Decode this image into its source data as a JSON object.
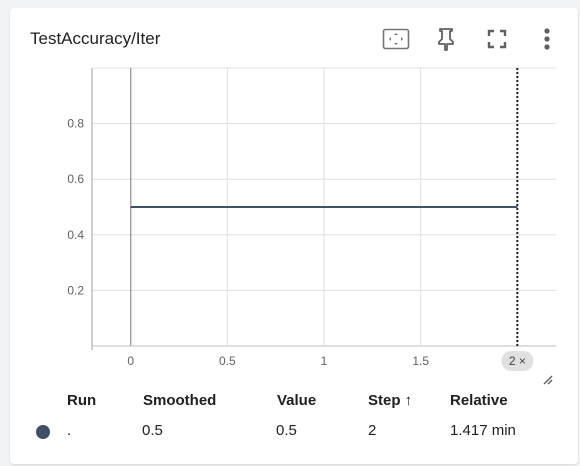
{
  "card": {
    "title": "TestAccuracy/Iter"
  },
  "toolbar": {
    "fit_icon": "fit-domain-icon",
    "pin_icon": "pin-icon",
    "fullscreen_icon": "fullscreen-icon",
    "menu_icon": "more-vert-icon"
  },
  "chart_data": {
    "type": "line",
    "title": "TestAccuracy/Iter",
    "xlabel": "",
    "ylabel": "",
    "xlim": [
      -0.2,
      2.2
    ],
    "ylim": [
      0,
      1
    ],
    "x_ticks": [
      0,
      0.5,
      1,
      1.5
    ],
    "x_tick_labels": [
      "0",
      "0.5",
      "1",
      "1.5"
    ],
    "y_ticks": [
      0.2,
      0.4,
      0.6,
      0.8
    ],
    "y_tick_labels": [
      "0.2",
      "0.4",
      "0.6",
      "0.8"
    ],
    "grid": true,
    "series": [
      {
        "x": [
          0,
          1,
          2
        ],
        "y": [
          0.5,
          0.5,
          0.5
        ],
        "color": "#425066"
      }
    ],
    "cursor": {
      "step": 2,
      "label": "2 ×"
    }
  },
  "table": {
    "headers": {
      "run": "Run",
      "smoothed": "Smoothed",
      "value": "Value",
      "step": "Step ↑",
      "relative": "Relative"
    },
    "rows": [
      {
        "color": "#425066",
        "run": ".",
        "smoothed": "0.5",
        "value": "0.5",
        "step": "2",
        "relative": "1.417 min"
      }
    ]
  }
}
